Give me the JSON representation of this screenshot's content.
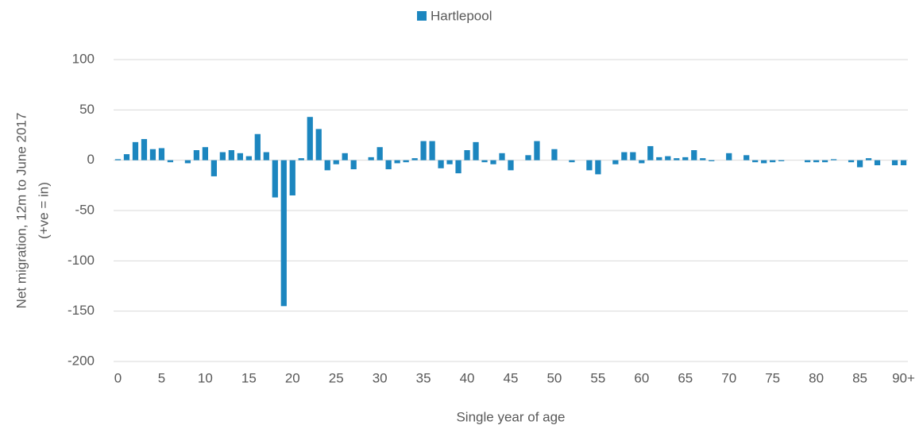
{
  "chart_data": {
    "type": "bar",
    "legend": "top",
    "series": [
      {
        "name": "Hartlepool",
        "color": "#1c86bf",
        "values": [
          1,
          6,
          18,
          21,
          11,
          12,
          -2,
          0,
          -3,
          10,
          13,
          -16,
          8,
          10,
          7,
          4,
          26,
          8,
          -37,
          -145,
          -35,
          2,
          43,
          31,
          -10,
          -4,
          7,
          -9,
          0,
          3,
          13,
          -9,
          -3,
          -2,
          2,
          19,
          19,
          -8,
          -4,
          -13,
          10,
          18,
          -2,
          -4,
          7,
          -10,
          0,
          5,
          19,
          0,
          11,
          0,
          -2,
          0,
          -10,
          -14,
          0,
          -4,
          8,
          8,
          -3,
          14,
          3,
          4,
          2,
          3,
          10,
          2,
          -1,
          0,
          7,
          0,
          5,
          -2,
          -3,
          -2,
          -1,
          0,
          0,
          -2,
          -2,
          -2,
          1,
          0,
          -2,
          -7,
          2,
          -5,
          0,
          -5,
          -5
        ]
      }
    ],
    "categories": [
      "0",
      null,
      null,
      null,
      null,
      "5",
      null,
      null,
      null,
      null,
      "10",
      null,
      null,
      null,
      null,
      "15",
      null,
      null,
      null,
      null,
      "20",
      null,
      null,
      null,
      null,
      "25",
      null,
      null,
      null,
      null,
      "30",
      null,
      null,
      null,
      null,
      "35",
      null,
      null,
      null,
      null,
      "40",
      null,
      null,
      null,
      null,
      "45",
      null,
      null,
      null,
      null,
      "50",
      null,
      null,
      null,
      null,
      "55",
      null,
      null,
      null,
      null,
      "60",
      null,
      null,
      null,
      null,
      "65",
      null,
      null,
      null,
      null,
      "70",
      null,
      null,
      null,
      null,
      "75",
      null,
      null,
      null,
      null,
      "80",
      null,
      null,
      null,
      null,
      "85",
      null,
      null,
      null,
      null,
      "90+"
    ],
    "ylim": [
      -200,
      100
    ],
    "yticks": [
      -200,
      -150,
      -100,
      -50,
      0,
      50,
      100
    ],
    "grid": true,
    "xlabel": "Single year of age",
    "ylabel": [
      "Net migration, 12m to June 2017",
      "(+ve = in)"
    ]
  }
}
